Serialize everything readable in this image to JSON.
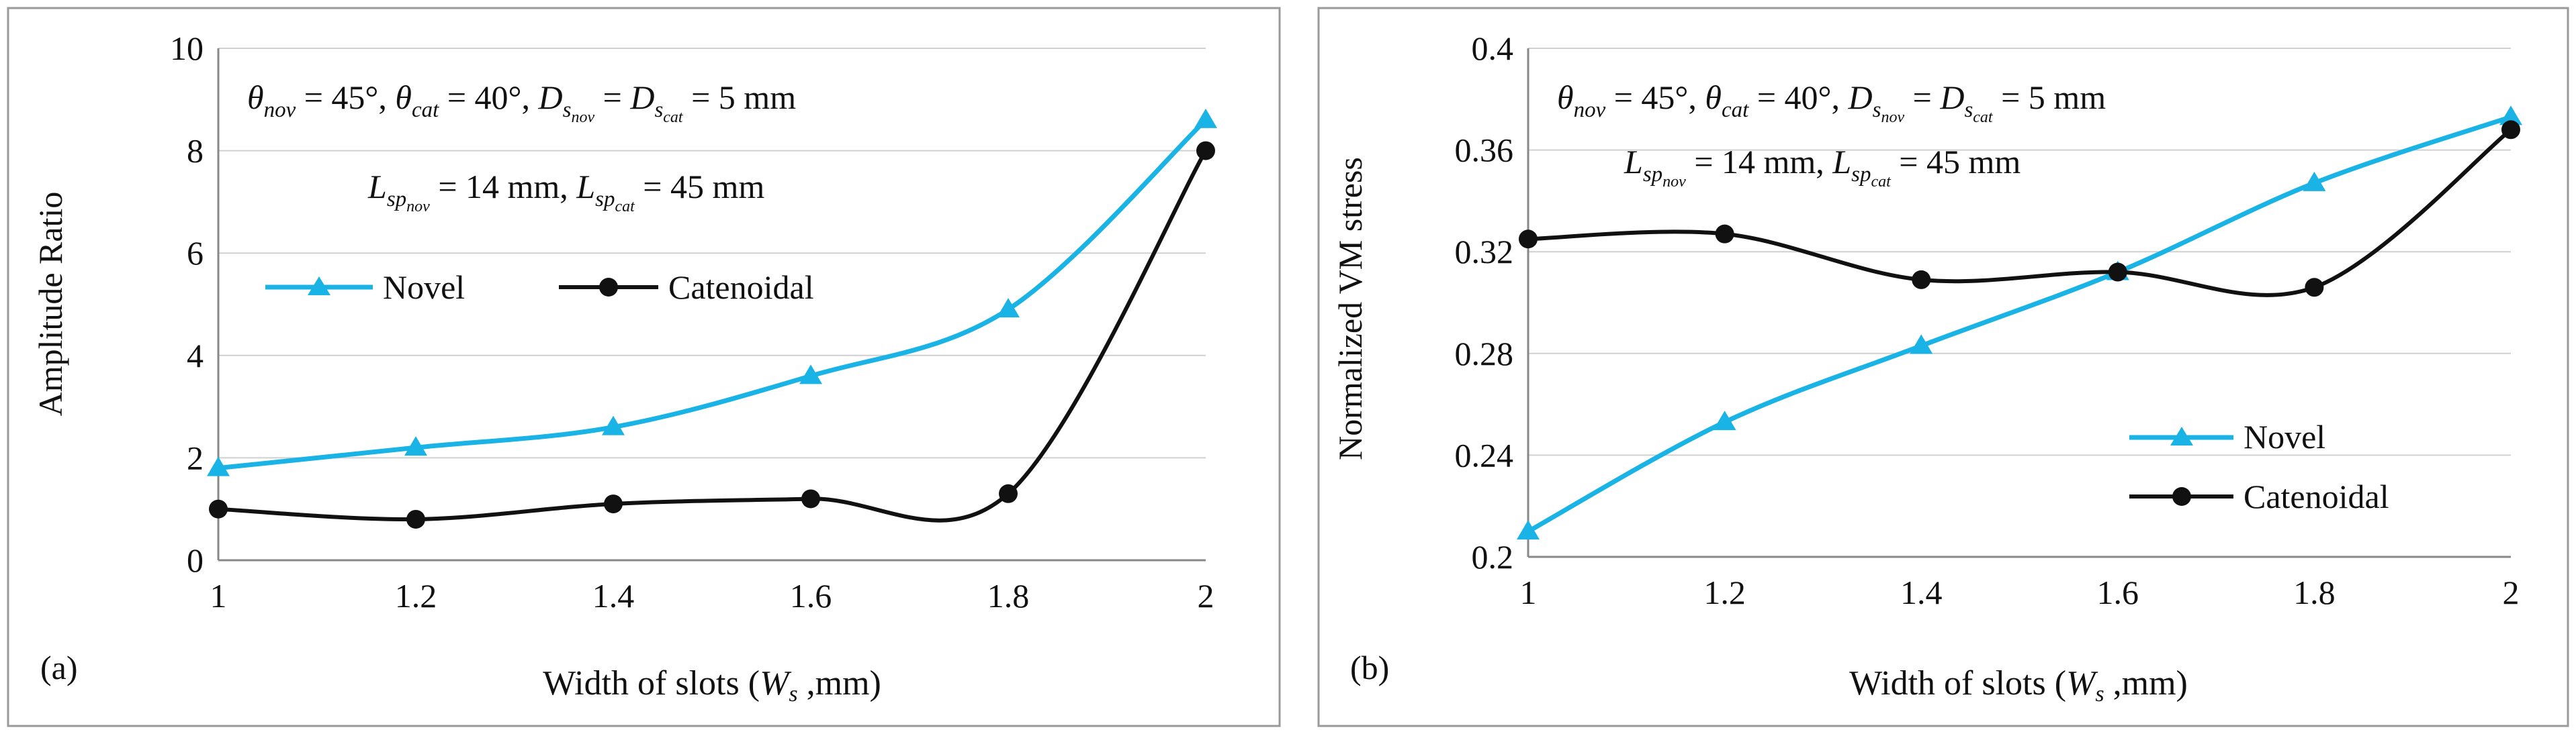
{
  "chart_data": [
    {
      "type": "line",
      "panel_label": "(a)",
      "title": "",
      "xlabel": "Width of slots (W_s, mm)",
      "ylabel": "Amplitude Ratio",
      "x": [
        1,
        1.2,
        1.4,
        1.6,
        1.8,
        2
      ],
      "xticks": [
        "1",
        "1.2",
        "1.4",
        "1.6",
        "1.8",
        "2"
      ],
      "xlim": [
        1,
        2
      ],
      "ylim": [
        0,
        10
      ],
      "yticks": [
        0,
        2,
        4,
        6,
        8,
        10
      ],
      "ytick_labels": [
        "0",
        "2",
        "4",
        "6",
        "8",
        "10"
      ],
      "annotation_line1": "θnov = 45°, θcat = 40°, Dsnov = Dscat = 5 mm",
      "annotation_line2": "Lspnov = 14 mm, Lspcat = 45 mm",
      "legend_position": "middle-left, horizontal",
      "series": [
        {
          "name": "Novel",
          "marker": "triangle",
          "color": "#19b3e6",
          "values": [
            1.8,
            2.2,
            2.6,
            3.6,
            4.9,
            8.6
          ]
        },
        {
          "name": "Catenoidal",
          "marker": "circle",
          "color": "#111111",
          "values": [
            1.0,
            0.8,
            1.1,
            1.2,
            1.3,
            8.0
          ]
        }
      ]
    },
    {
      "type": "line",
      "panel_label": "(b)",
      "title": "",
      "xlabel": "Width of slots (W_s, mm)",
      "ylabel": "Normalized VM stress",
      "x": [
        1,
        1.2,
        1.4,
        1.6,
        1.8,
        2
      ],
      "xticks": [
        "1",
        "1.2",
        "1.4",
        "1.6",
        "1.8",
        "2"
      ],
      "xlim": [
        1,
        2
      ],
      "ylim": [
        0.2,
        0.4
      ],
      "yticks": [
        0.2,
        0.24,
        0.28,
        0.32,
        0.36,
        0.4
      ],
      "ytick_labels": [
        "0.2",
        "0.24",
        "0.28",
        "0.32",
        "0.36",
        "0.4"
      ],
      "annotation_line1": "θnov = 45°, θcat = 40°, Dsnov = Dscat = 5 mm",
      "annotation_line2": "Lspnov = 14 mm, Lspcat = 45 mm",
      "legend_position": "bottom-right, vertical",
      "series": [
        {
          "name": "Novel",
          "marker": "triangle",
          "color": "#19b3e6",
          "values": [
            0.21,
            0.253,
            0.283,
            0.312,
            0.347,
            0.373
          ]
        },
        {
          "name": "Catenoidal",
          "marker": "circle",
          "color": "#111111",
          "values": [
            0.325,
            0.327,
            0.309,
            0.312,
            0.306,
            0.368
          ]
        }
      ]
    }
  ]
}
